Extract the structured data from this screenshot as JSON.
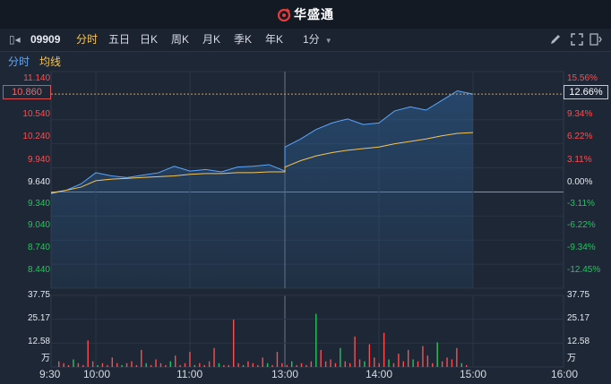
{
  "header": {
    "app_title": "华盛通"
  },
  "toolbar": {
    "stock_code": "09909",
    "periods": [
      "分时",
      "五日",
      "日K",
      "周K",
      "月K",
      "季K",
      "年K"
    ],
    "active_period": "分时",
    "minute_select": "1分"
  },
  "subtabs": {
    "fenshi": "分时",
    "junxian": "均线"
  },
  "price_axis": {
    "left_labels": [
      "11.140",
      "10.540",
      "10.240",
      "9.940",
      "9.640",
      "9.340",
      "9.040",
      "8.740",
      "8.440"
    ],
    "right_labels": [
      "15.56%",
      "9.34%",
      "6.22%",
      "3.11%",
      "0.00%",
      "-3.11%",
      "-6.22%",
      "-9.34%",
      "-12.45%"
    ],
    "current_price": "10.860",
    "current_pct": "12.66%"
  },
  "volume_axis": {
    "left_labels": [
      "37.75",
      "25.17",
      "12.58",
      "万"
    ],
    "right_labels": [
      "37.75",
      "25.17",
      "12.58",
      "万"
    ]
  },
  "time_axis": [
    "9:30",
    "10:00",
    "11:00",
    "13:00",
    "14:00",
    "15:00",
    "16:00"
  ],
  "colors": {
    "up": "#ff4d4f",
    "down": "#22c55e",
    "price_line": "#5aa7ff",
    "avg_line": "#f6c453",
    "background": "#1e2735",
    "grid": "#3a4658"
  },
  "chart_data": {
    "type": "line",
    "title": "",
    "xlabel": "",
    "ylabel": "",
    "ylim": [
      8.44,
      11.14
    ],
    "prev_close": 9.64,
    "x": [
      "09:30",
      "09:40",
      "09:50",
      "10:00",
      "10:10",
      "10:20",
      "10:30",
      "10:40",
      "10:50",
      "11:00",
      "11:10",
      "11:20",
      "11:30",
      "11:40",
      "11:50",
      "12:00",
      "13:00",
      "13:10",
      "13:20",
      "13:30",
      "13:40",
      "13:50",
      "14:00",
      "14:10",
      "14:20",
      "14:30",
      "14:40",
      "14:50",
      "15:00"
    ],
    "series": [
      {
        "values": [
          9.62,
          9.66,
          9.74,
          9.88,
          9.84,
          9.82,
          9.85,
          9.88,
          9.96,
          9.9,
          9.92,
          9.89,
          9.95,
          9.96,
          9.98,
          9.9,
          10.2,
          10.3,
          10.42,
          10.5,
          10.55,
          10.48,
          10.5,
          10.65,
          10.7,
          10.66,
          10.78,
          10.9,
          10.86
        ]
      },
      {
        "values": [
          9.63,
          9.66,
          9.7,
          9.78,
          9.8,
          9.81,
          9.82,
          9.83,
          9.84,
          9.86,
          9.87,
          9.87,
          9.88,
          9.88,
          9.89,
          9.89,
          9.95,
          10.03,
          10.09,
          10.13,
          10.16,
          10.18,
          10.2,
          10.24,
          10.27,
          10.3,
          10.34,
          10.37,
          10.38
        ]
      }
    ],
    "volume_ylim": [
      0,
      37.75
    ],
    "volume_unit": "万"
  }
}
